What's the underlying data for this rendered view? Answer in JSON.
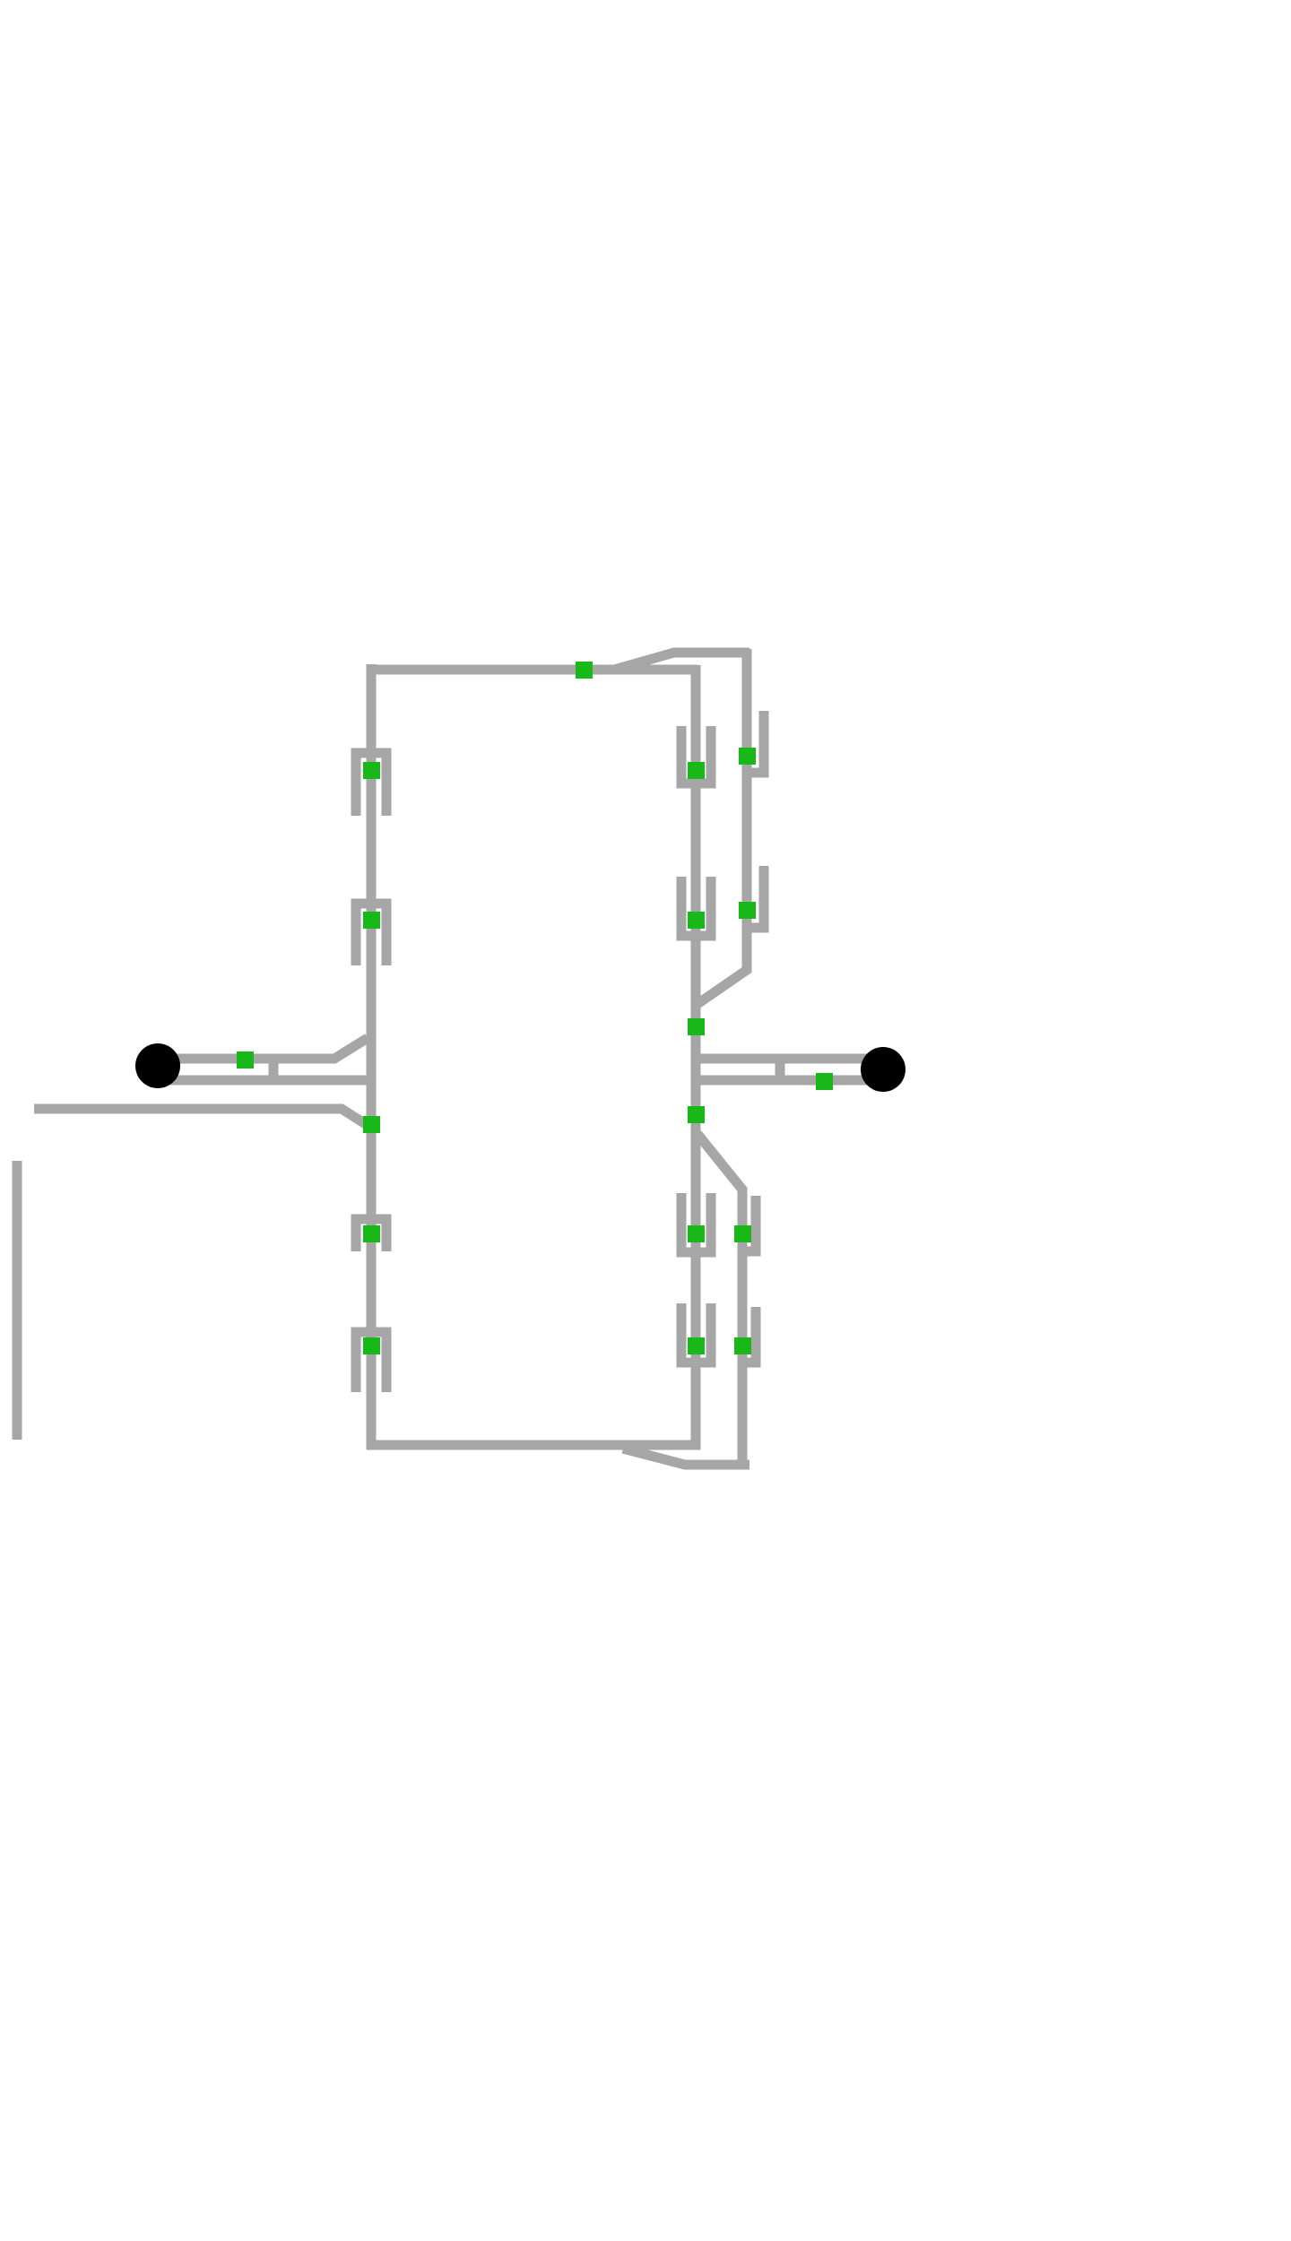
{
  "diagram": {
    "colors": {
      "background": "#ffffff",
      "track": "#a6a6a6",
      "signal": "#17b817",
      "terminal": "#000000"
    },
    "track_labels": [],
    "node_labels": []
  }
}
